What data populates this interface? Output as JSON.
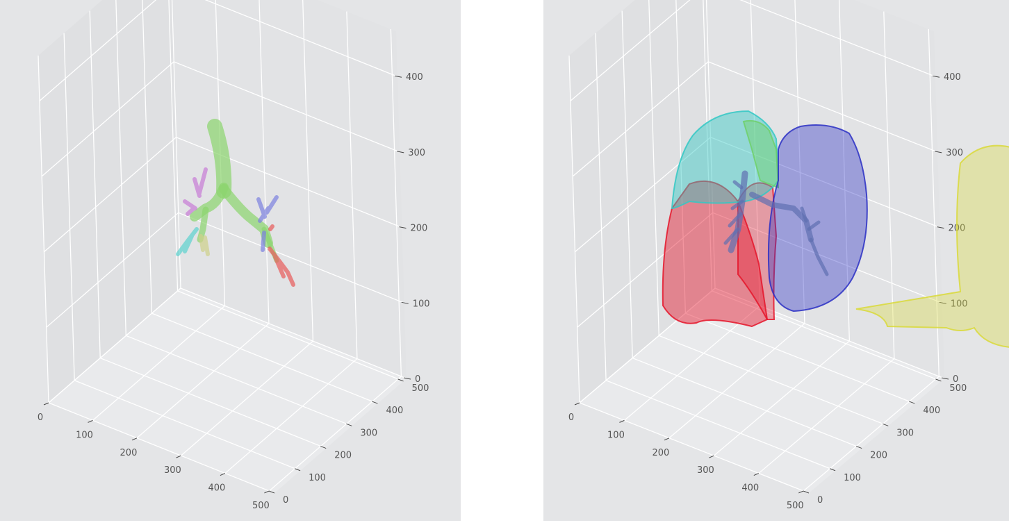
{
  "chart_data": [
    {
      "type": "scatter",
      "title": "",
      "xlabel": "",
      "ylabel": "",
      "zlabel": "",
      "x_ticks": [
        "0",
        "100",
        "200",
        "300",
        "400",
        "500"
      ],
      "y_ticks": [
        "0",
        "100",
        "200",
        "300",
        "400",
        "500"
      ],
      "z_ticks": [
        "0",
        "100",
        "200",
        "300",
        "400"
      ],
      "xlim": [
        0,
        512
      ],
      "ylim": [
        0,
        512
      ],
      "zlim": [
        0,
        460
      ],
      "grid": true,
      "series": [
        {
          "color": "#8cd46e",
          "part": "trachea and main bronchi"
        },
        {
          "color": "#c77ad6",
          "part": "upper left branch"
        },
        {
          "color": "#5cd1cf",
          "part": "lower left branch"
        },
        {
          "color": "#cfd08a",
          "part": "middle left branch"
        },
        {
          "color": "#7c80e0",
          "part": "upper right branch"
        },
        {
          "color": "#e85a5a",
          "part": "lower right branch"
        }
      ]
    },
    {
      "type": "scatter",
      "title": "",
      "xlabel": "",
      "ylabel": "",
      "zlabel": "",
      "x_ticks": [
        "0",
        "100",
        "200",
        "300",
        "400",
        "500"
      ],
      "y_ticks": [
        "0",
        "100",
        "200",
        "300",
        "400",
        "500"
      ],
      "z_ticks": [
        "0",
        "100",
        "200",
        "300",
        "400"
      ],
      "xlim": [
        0,
        512
      ],
      "ylim": [
        0,
        512
      ],
      "zlim": [
        0,
        460
      ],
      "grid": true,
      "series": [
        {
          "color": "#33c8c4",
          "part": "lobe, upper"
        },
        {
          "color": "#e5152a",
          "part": "lobe, lower"
        },
        {
          "color": "#6fd06a",
          "part": "lobe, middle"
        },
        {
          "color": "#2a2fc4",
          "part": "lobe, upper"
        },
        {
          "color": "#d9d93a",
          "part": "lobe, lower"
        },
        {
          "color": "#5f6fb0",
          "part": "airway tree"
        }
      ]
    }
  ]
}
